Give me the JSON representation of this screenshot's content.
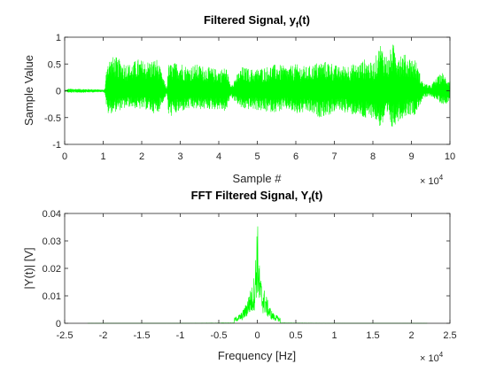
{
  "chart_data": [
    {
      "type": "line",
      "title": "Filtered Signal, y",
      "title_subscript": "f",
      "title_suffix": "(t)",
      "xlabel": "Sample #",
      "ylabel": "Sample Value",
      "xlim": [
        0,
        100000
      ],
      "ylim": [
        -1,
        1
      ],
      "x_ticks": [
        0,
        10000,
        20000,
        30000,
        40000,
        50000,
        60000,
        70000,
        80000,
        90000,
        100000
      ],
      "x_tick_labels": [
        "0",
        "1",
        "2",
        "3",
        "4",
        "5",
        "6",
        "7",
        "8",
        "9",
        "10"
      ],
      "y_ticks": [
        -1,
        -0.5,
        0,
        0.5,
        1
      ],
      "y_tick_labels": [
        "-1",
        "-0.5",
        "0",
        "0.5",
        "1"
      ],
      "x_exponent": {
        "base": "× 10",
        "power": "4"
      },
      "grid": false,
      "line_color": "#00ff00",
      "envelope": {
        "x": [
          0,
          1000,
          8000,
          10000,
          10500,
          11000,
          13000,
          15000,
          17000,
          19000,
          21000,
          24000,
          26000,
          26500,
          27000,
          30000,
          32000,
          34000,
          37000,
          40000,
          42000,
          43000,
          46000,
          49000,
          52000,
          55000,
          58000,
          60000,
          63000,
          66000,
          69000,
          71000,
          74000,
          76000,
          78000,
          80000,
          82000,
          84000,
          85000,
          86000,
          88000,
          89000,
          91000,
          93000,
          95000,
          96000,
          98000,
          99000,
          100000
        ],
        "upper": [
          0.0,
          0.04,
          0.03,
          0.02,
          0.05,
          0.6,
          0.65,
          0.55,
          0.5,
          0.6,
          0.55,
          0.6,
          0.15,
          0.05,
          0.5,
          0.55,
          0.45,
          0.5,
          0.45,
          0.4,
          0.45,
          0.1,
          0.45,
          0.4,
          0.45,
          0.5,
          0.45,
          0.5,
          0.45,
          0.55,
          0.55,
          0.45,
          0.5,
          0.5,
          0.6,
          0.5,
          0.9,
          0.6,
          0.9,
          0.8,
          0.7,
          0.65,
          0.6,
          0.15,
          0.1,
          0.2,
          0.35,
          0.25,
          0.2
        ],
        "lower": [
          0.0,
          -0.04,
          -0.03,
          -0.02,
          -0.05,
          -0.45,
          -0.4,
          -0.35,
          -0.3,
          -0.35,
          -0.35,
          -0.45,
          -0.15,
          -0.05,
          -0.5,
          -0.4,
          -0.35,
          -0.35,
          -0.35,
          -0.35,
          -0.4,
          -0.1,
          -0.35,
          -0.35,
          -0.4,
          -0.4,
          -0.35,
          -0.45,
          -0.4,
          -0.5,
          -0.45,
          -0.35,
          -0.45,
          -0.45,
          -0.55,
          -0.5,
          -0.7,
          -0.5,
          -0.75,
          -0.6,
          -0.5,
          -0.45,
          -0.45,
          -0.15,
          -0.1,
          -0.15,
          -0.25,
          -0.25,
          -0.15
        ]
      }
    },
    {
      "type": "line",
      "title": "FFT Filtered Signal, Y",
      "title_subscript": "f",
      "title_suffix": "(t)",
      "xlabel": "Frequency [Hz]",
      "ylabel": "|Y(t)| [V]",
      "xlim": [
        -25000,
        25000
      ],
      "ylim": [
        0,
        0.04
      ],
      "x_ticks": [
        -25000,
        -20000,
        -15000,
        -10000,
        -5000,
        0,
        5000,
        10000,
        15000,
        20000,
        25000
      ],
      "x_tick_labels": [
        "-2.5",
        "-2",
        "-1.5",
        "-1",
        "-0.5",
        "0",
        "0.5",
        "1",
        "1.5",
        "2",
        "2.5"
      ],
      "y_ticks": [
        0,
        0.01,
        0.02,
        0.03,
        0.04
      ],
      "y_tick_labels": [
        "0",
        "0.01",
        "0.02",
        "0.03",
        "0.04"
      ],
      "x_exponent": {
        "base": "× 10",
        "power": "4"
      },
      "grid": false,
      "line_color": "#00ff00",
      "signal_range_hz": [
        -22050,
        22050
      ],
      "peaks": {
        "x": [
          -3000,
          -2000,
          -1500,
          -1000,
          -600,
          -300,
          0,
          300,
          600,
          1000,
          1500,
          2000,
          3000
        ],
        "y": [
          0.002,
          0.004,
          0.007,
          0.012,
          0.014,
          0.02,
          0.04,
          0.02,
          0.014,
          0.012,
          0.007,
          0.004,
          0.002
        ]
      }
    }
  ]
}
